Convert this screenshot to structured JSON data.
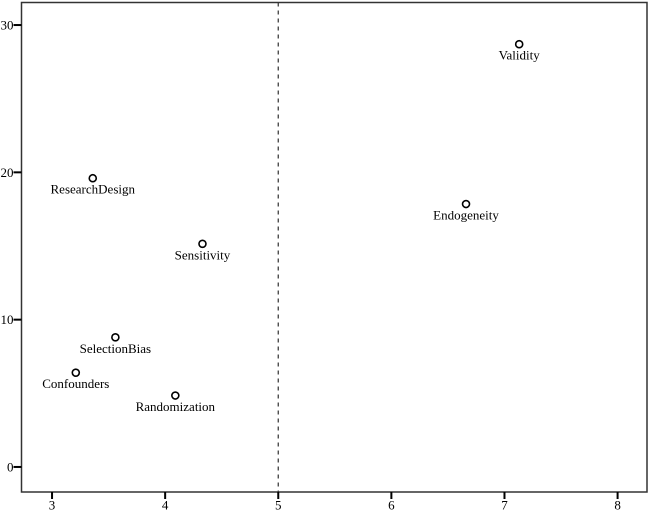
{
  "chart_data": {
    "type": "scatter",
    "title": "",
    "xlabel": "",
    "ylabel": "",
    "x_ticks": [
      3,
      4,
      5,
      6,
      7,
      8
    ],
    "y_ticks": [
      0,
      10,
      20,
      30
    ],
    "xlim": [
      2.73,
      8.26
    ],
    "ylim": [
      -1.7,
      31.53
    ],
    "grid": false,
    "legend": "none",
    "marker_style": "open-circle",
    "reference_line": {
      "orientation": "vertical",
      "x": 5,
      "style": "dashed"
    },
    "points": [
      {
        "label": "Validity",
        "x": 7.13,
        "y": 28.7
      },
      {
        "label": "ResearchDesign",
        "x": 3.36,
        "y": 19.6
      },
      {
        "label": "Endogeneity",
        "x": 6.66,
        "y": 17.85
      },
      {
        "label": "Sensitivity",
        "x": 4.33,
        "y": 15.15
      },
      {
        "label": "SelectionBias",
        "x": 3.56,
        "y": 8.8
      },
      {
        "label": "Confounders",
        "x": 3.21,
        "y": 6.4
      },
      {
        "label": "Randomization",
        "x": 4.09,
        "y": 4.85
      }
    ],
    "colors": {
      "marker_stroke": "#000000",
      "marker_fill": "#ffffff",
      "axis": "#333333",
      "tick": "#000000",
      "reference_line": "#404040",
      "text": "#000000",
      "background": "#ffffff"
    }
  }
}
